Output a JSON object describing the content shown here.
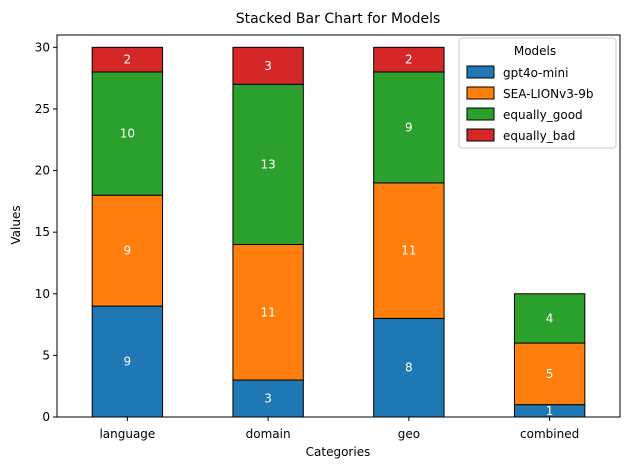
{
  "chart_data": {
    "type": "bar",
    "stacked": true,
    "title": "Stacked Bar Chart for Models",
    "xlabel": "Categories",
    "ylabel": "Values",
    "ylim": [
      0,
      31
    ],
    "yticks": [
      0,
      5,
      10,
      15,
      20,
      25,
      30
    ],
    "categories": [
      "language",
      "domain",
      "geo",
      "combined"
    ],
    "series": [
      {
        "name": "gpt4o-mini",
        "color": "#1f77b4",
        "values": [
          9,
          3,
          8,
          1
        ]
      },
      {
        "name": "SEA-LIONv3-9b",
        "color": "#ff7f0e",
        "values": [
          9,
          11,
          11,
          5
        ]
      },
      {
        "name": "equally_good",
        "color": "#2ca02c",
        "values": [
          10,
          13,
          9,
          4
        ]
      },
      {
        "name": "equally_bad",
        "color": "#d62728",
        "values": [
          2,
          3,
          2,
          0
        ]
      }
    ],
    "legend": {
      "title": "Models",
      "position": "top-right"
    },
    "grid": false
  }
}
